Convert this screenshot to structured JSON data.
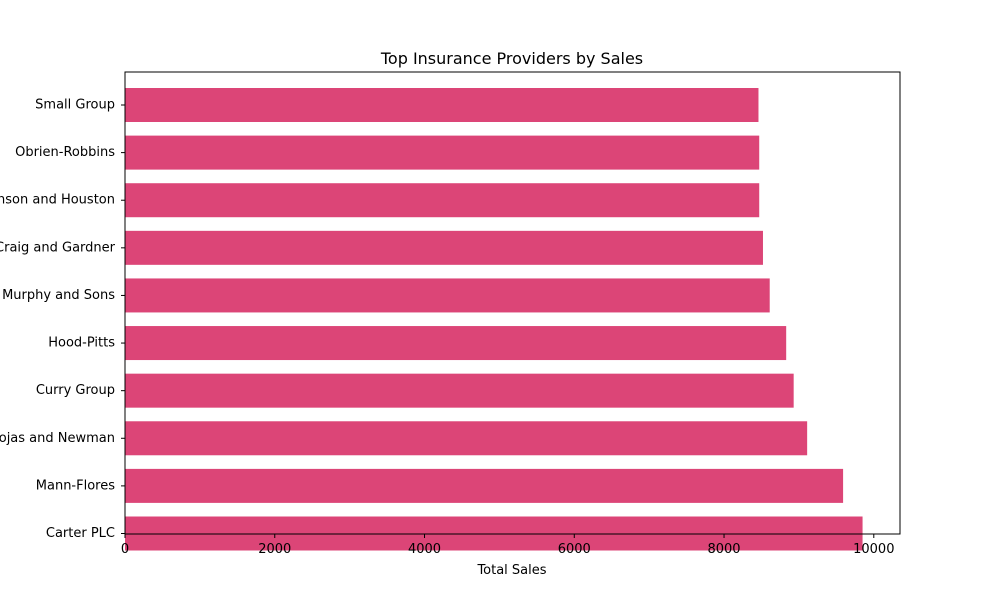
{
  "chart_data": {
    "type": "bar",
    "orientation": "horizontal",
    "title": "Top Insurance Providers by Sales",
    "xlabel": "Total Sales",
    "ylabel": "",
    "xlim": [
      0,
      10350
    ],
    "xticks": [
      0,
      2000,
      4000,
      6000,
      8000,
      10000
    ],
    "xtick_labels": [
      "0",
      "2000",
      "4000",
      "6000",
      "8000",
      "10000"
    ],
    "grid": false,
    "bar_color": "#dc4577",
    "categories": [
      "Carter PLC",
      "Mann-Flores",
      "Rojas and Newman",
      "Curry Group",
      "Hood-Pitts",
      "Murphy and Sons",
      "Craig and Gardner",
      "Johnson and Houston",
      "Obrien-Robbins",
      "Small Group"
    ],
    "values": [
      9850,
      9590,
      9110,
      8930,
      8830,
      8610,
      8520,
      8470,
      8470,
      8460
    ]
  }
}
